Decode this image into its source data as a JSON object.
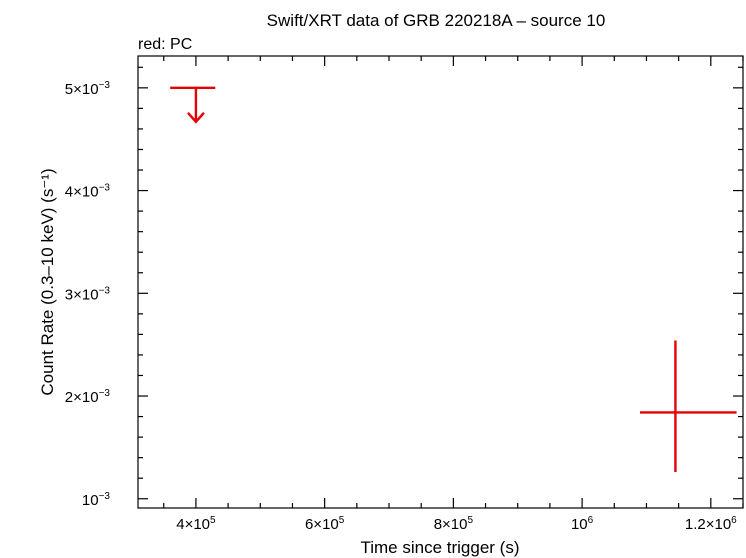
{
  "chart_data": {
    "type": "scatter",
    "title": "Swift/XRT data of GRB 220218A – source 10",
    "annotation": "red: PC",
    "xlabel": "Time since trigger (s)",
    "ylabel": "Count Rate (0.3–10 keV) (s⁻¹)",
    "xlim": [
      310000,
      1250000
    ],
    "ylim": [
      0.00091,
      0.00531
    ],
    "grid": false,
    "x_ticks": [
      {
        "value": 400000,
        "mantissa": "4×10",
        "exp": "5"
      },
      {
        "value": 600000,
        "mantissa": "6×10",
        "exp": "5"
      },
      {
        "value": 800000,
        "mantissa": "8×10",
        "exp": "5"
      },
      {
        "value": 1000000,
        "mantissa": "10",
        "exp": "6"
      },
      {
        "value": 1200000,
        "mantissa": "1.2×10",
        "exp": "6"
      }
    ],
    "y_ticks": [
      {
        "value": 0.001,
        "mantissa": "10",
        "exp": "−3"
      },
      {
        "value": 0.002,
        "mantissa": "2×10",
        "exp": "−3"
      },
      {
        "value": 0.003,
        "mantissa": "3×10",
        "exp": "−3"
      },
      {
        "value": 0.004,
        "mantissa": "4×10",
        "exp": "−3"
      },
      {
        "value": 0.005,
        "mantissa": "5×10",
        "exp": "−3"
      }
    ],
    "series": [
      {
        "color": "#e60000",
        "points": [
          {
            "kind": "upper_limit",
            "x": 400000,
            "xerr": [
              40000,
              30000
            ],
            "y": 0.005
          },
          {
            "kind": "point",
            "x": 1145000,
            "xerr": [
              55000,
              95000
            ],
            "y": 0.00184,
            "yerr": [
              0.00058,
              0.0007
            ]
          }
        ]
      }
    ]
  }
}
